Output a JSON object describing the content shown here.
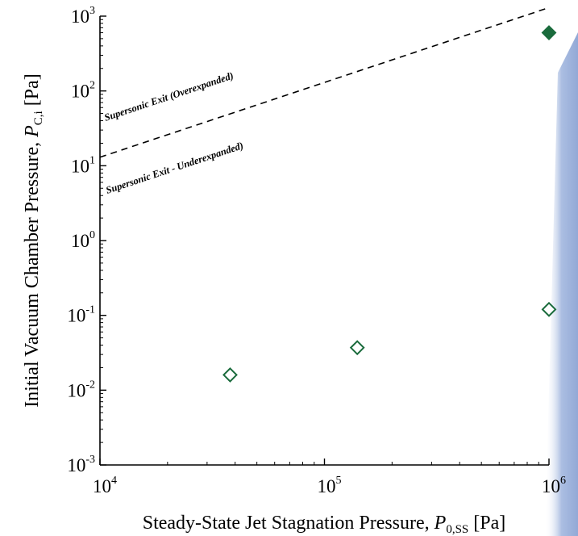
{
  "chart_data": {
    "type": "scatter",
    "x_scale": "log",
    "y_scale": "log",
    "xlim": [
      10000,
      1000000
    ],
    "ylim": [
      0.001,
      1000
    ],
    "xlabel": {
      "prefix": "Steady-State Jet Stagnation Pressure, ",
      "symbol": "P",
      "subscript": "0,SS",
      "suffix": " [Pa]"
    },
    "ylabel": {
      "prefix": "Initial Vacuum Chamber Pressure, ",
      "symbol": "P",
      "subscript": "C,i",
      "suffix": " [Pa]"
    },
    "x_ticks": [
      {
        "value": 10000,
        "base": "10",
        "exp": "4"
      },
      {
        "value": 100000,
        "base": "10",
        "exp": "5"
      },
      {
        "value": 1000000,
        "base": "10",
        "exp": "6"
      }
    ],
    "y_ticks": [
      {
        "value": 0.001,
        "base": "10",
        "exp": "-3"
      },
      {
        "value": 0.01,
        "base": "10",
        "exp": "-2"
      },
      {
        "value": 0.1,
        "base": "10",
        "exp": "-1"
      },
      {
        "value": 1,
        "base": "10",
        "exp": "0"
      },
      {
        "value": 10,
        "base": "10",
        "exp": "1"
      },
      {
        "value": 100,
        "base": "10",
        "exp": "2"
      },
      {
        "value": 1000,
        "base": "10",
        "exp": "3"
      }
    ],
    "boundary_line": {
      "style": "dashed",
      "color": "#000000",
      "points": [
        [
          10000,
          13
        ],
        [
          1000000,
          1300
        ]
      ]
    },
    "annotations": [
      {
        "text": "Supersonic Exit (Overexpanded)"
      },
      {
        "text": "Supersonic Exit - Underexpanded)"
      }
    ],
    "series": [
      {
        "marker": "diamond",
        "filled": true,
        "color": "#1a6b3c",
        "points": [
          [
            1000000,
            600
          ]
        ]
      },
      {
        "marker": "diamond",
        "filled": false,
        "color": "#1a6b3c",
        "points": [
          [
            38000,
            0.016
          ],
          [
            140000,
            0.037
          ],
          [
            1000000,
            0.12
          ]
        ]
      }
    ],
    "grid": false,
    "legend": "none"
  },
  "decor": {
    "background_wedge_color": "#8fa8d8"
  }
}
